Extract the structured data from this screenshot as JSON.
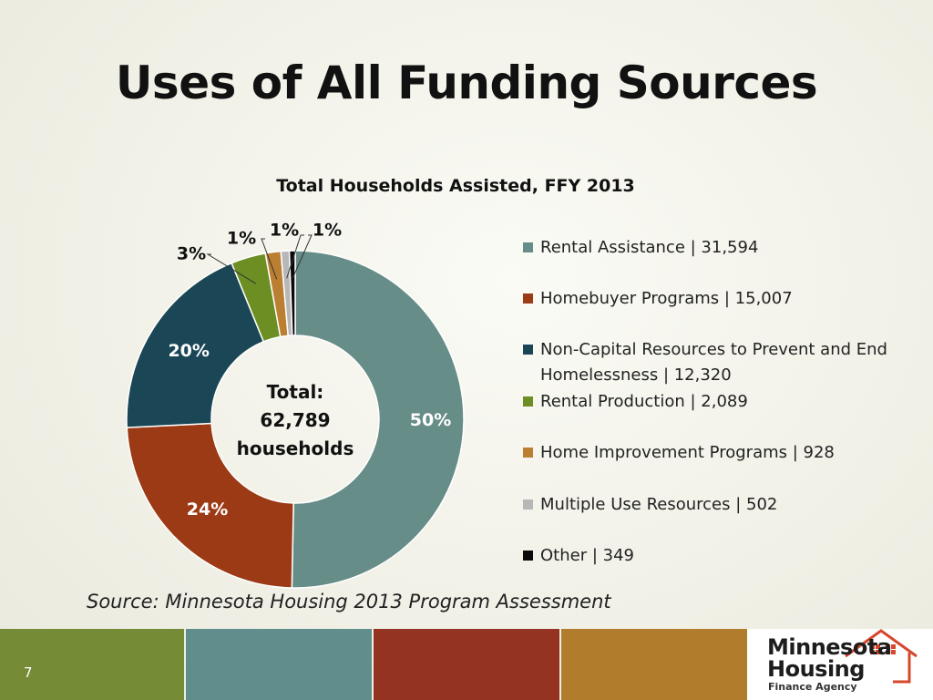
{
  "slide": {
    "title": "Uses of All Funding Sources",
    "page_number": "7",
    "source": "Source: Minnesota Housing 2013 Program Assessment"
  },
  "chart_data": {
    "type": "pie",
    "subtype": "donut",
    "title": "Total Households Assisted, FFY 2013",
    "center_label": [
      "Total:",
      "62,789",
      "households"
    ],
    "legend_position": "right",
    "slices": [
      {
        "name": "Rental Assistance",
        "value": 31594,
        "percent_label": "50%",
        "color": "#678d89",
        "legend_label": "Rental Assistance | 31,594"
      },
      {
        "name": "Homebuyer Programs",
        "value": 15007,
        "percent_label": "24%",
        "color": "#9b3a15",
        "legend_label": "Homebuyer Programs | 15,007"
      },
      {
        "name": "Non-Capital Resources to Prevent and End Homelessness",
        "value": 12320,
        "percent_label": "20%",
        "color": "#1a4656",
        "legend_label": "Non-Capital Resources to Prevent and End Homelessness | 12,320"
      },
      {
        "name": "Rental Production",
        "value": 2089,
        "percent_label": "3%",
        "color": "#6c8e22",
        "legend_label": "Rental Production | 2,089"
      },
      {
        "name": "Home Improvement Programs",
        "value": 928,
        "percent_label": "1%",
        "color": "#bb7f32",
        "legend_label": "Home Improvement Programs | 928"
      },
      {
        "name": "Multiple Use Resources",
        "value": 502,
        "percent_label": "1%",
        "color": "#b7b7b7",
        "legend_label": "Multiple Use Resources | 502"
      },
      {
        "name": "Other",
        "value": 349,
        "percent_label": "1%",
        "color": "#0a0a0a",
        "legend_label": "Other | 349"
      }
    ]
  },
  "footer": {
    "band_colors": [
      "#758b35",
      "#5f8e8c",
      "#943322",
      "#b17d2c"
    ]
  },
  "logo": {
    "line1": "Minnesota",
    "line2": "Housing",
    "line3": "Finance Agency",
    "accent_color": "#d6472c"
  }
}
